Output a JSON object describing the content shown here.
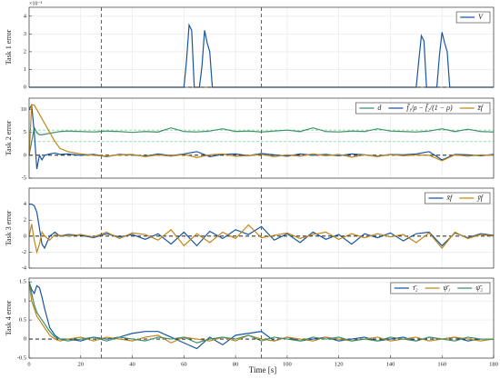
{
  "chart_data": [
    {
      "type": "line",
      "ylabel": "Task 1 error",
      "y_exponent": "×10⁻³",
      "xlim": [
        0,
        180
      ],
      "ylim": [
        0,
        4.5
      ],
      "yticks": [
        0,
        1,
        2,
        3,
        4
      ],
      "grid": true,
      "legend": "upper right",
      "vlines": [
        28,
        90
      ],
      "vline_color": "#d9342b",
      "hline": 0,
      "x": [
        0,
        60,
        61,
        62,
        63,
        64,
        66,
        67,
        68,
        69,
        70,
        71,
        72,
        150,
        151,
        152,
        153,
        154,
        158,
        159,
        160,
        161,
        162,
        163,
        180
      ],
      "series": [
        {
          "name": "V",
          "color": "#1a56a0",
          "values": [
            0,
            0,
            1.5,
            3.5,
            3.2,
            0,
            0,
            1.2,
            3.2,
            2.5,
            2.0,
            0,
            0,
            0,
            1.5,
            2.9,
            2.6,
            0,
            0,
            1.8,
            3.1,
            2.5,
            2.0,
            0,
            0
          ]
        }
      ]
    },
    {
      "type": "line",
      "ylabel": "Task 2 error",
      "xlim": [
        0,
        180
      ],
      "ylim": [
        -5,
        12.5
      ],
      "yticks": [
        -5,
        0,
        5,
        10
      ],
      "grid": true,
      "legend": "upper right",
      "vlines": [
        28,
        90
      ],
      "vline_color": "#d9342b",
      "hline": 0,
      "thresholds": [
        3,
        5.5
      ],
      "threshold_color": "#7fdc8f",
      "x": [
        0,
        1,
        2,
        3,
        4,
        5,
        6,
        8,
        10,
        12,
        15,
        20,
        25,
        30,
        35,
        40,
        45,
        50,
        55,
        60,
        65,
        70,
        75,
        80,
        85,
        90,
        95,
        100,
        105,
        110,
        115,
        120,
        125,
        130,
        135,
        140,
        145,
        150,
        155,
        160,
        165,
        170,
        175,
        180
      ],
      "series": [
        {
          "name": "d",
          "color": "#3f8f6a",
          "values": [
            0,
            3,
            6,
            5,
            4.5,
            4.5,
            4.6,
            4.8,
            5,
            5.2,
            5.3,
            5.2,
            5.1,
            5.3,
            5.2,
            5,
            5.2,
            5.1,
            6,
            5.2,
            5.1,
            5.3,
            5.8,
            5.2,
            5.3,
            5.1,
            5.3,
            5.5,
            5.2,
            6,
            5.2,
            5.1,
            5.3,
            5.2,
            5.8,
            5.3,
            5.2,
            5.1,
            5.3,
            5.8,
            5.2,
            5.7,
            5.2,
            5.1
          ]
        },
        {
          "name": "f̄₁/ρ − f̄₂/(1 − ρ)",
          "color": "#1a56a0",
          "values": [
            10,
            11,
            5,
            -3,
            0,
            -1,
            0,
            0.3,
            0.5,
            0.2,
            0.3,
            0,
            0.2,
            -0.3,
            0.2,
            0.1,
            -0.2,
            0.3,
            -0.1,
            0.3,
            0.8,
            -0.3,
            0.2,
            0.3,
            -0.1,
            0.4,
            0.1,
            -0.2,
            0.3,
            0,
            0.2,
            -0.1,
            0.3,
            0.1,
            -0.2,
            0.2,
            0.1,
            0.3,
            0.8,
            -1,
            0.2,
            0.1,
            -0.1,
            0.2
          ]
        },
        {
          "name": "z̄f",
          "color": "#c0861a",
          "values": [
            0,
            11,
            11,
            10,
            9,
            8,
            7,
            5,
            3,
            1.5,
            0.8,
            0.3,
            0,
            -0.2,
            0.1,
            0.2,
            -0.3,
            0.1,
            -0.2,
            0.2,
            -0.5,
            0.1,
            0.3,
            -0.2,
            -0.1,
            0.2,
            -0.3,
            0.1,
            -0.2,
            0.3,
            -0.1,
            0.2,
            -0.4,
            0.1,
            -0.3,
            0.2,
            -0.1,
            0.1,
            0,
            -1.2,
            0.1,
            -0.2,
            0.1,
            0
          ]
        }
      ]
    },
    {
      "type": "line",
      "ylabel": "Task 3 error",
      "xlim": [
        0,
        180
      ],
      "ylim": [
        -4,
        6
      ],
      "yticks": [
        -4,
        -2,
        0,
        2,
        4
      ],
      "grid": true,
      "legend": "upper right",
      "vlines": [
        28,
        90
      ],
      "vline_color": "#d9342b",
      "hline": 0,
      "x": [
        0,
        1,
        2,
        3,
        4,
        5,
        6,
        8,
        10,
        12,
        15,
        20,
        25,
        30,
        35,
        40,
        45,
        50,
        55,
        60,
        65,
        70,
        75,
        80,
        85,
        90,
        95,
        100,
        105,
        110,
        115,
        120,
        125,
        130,
        135,
        140,
        145,
        150,
        155,
        160,
        165,
        170,
        175,
        180
      ],
      "series": [
        {
          "name": "x̄f",
          "color": "#1a56a0",
          "values": [
            4,
            4,
            3.8,
            3,
            1,
            -1,
            -1.5,
            0,
            0.5,
            0,
            0.2,
            0.1,
            -0.2,
            0.3,
            -0.1,
            0.2,
            -0.4,
            0.3,
            -1,
            0.5,
            -1.2,
            0.6,
            -0.3,
            0.8,
            0.2,
            1.2,
            -0.5,
            0.3,
            -0.8,
            0.5,
            -0.4,
            0.2,
            -1,
            0.3,
            -0.2,
            0.4,
            -0.6,
            0.3,
            0.5,
            -1.2,
            0.4,
            -0.2,
            0.3,
            0.1
          ]
        },
        {
          "name": "ȳf",
          "color": "#c0861a",
          "values": [
            0,
            1.5,
            -0.5,
            -2,
            -1,
            0.5,
            0,
            -0.5,
            0.2,
            0.1,
            0,
            0.2,
            -0.1,
            0.5,
            -0.3,
            0.4,
            0.2,
            -0.5,
            0.8,
            -1.2,
            0.3,
            -0.8,
            0.5,
            -0.3,
            1.4,
            -0.2,
            0.1,
            0.4,
            -0.3,
            0.2,
            0.5,
            -0.4,
            0.3,
            -0.2,
            0.3,
            -0.1,
            0.2,
            -0.8,
            0.4,
            -1.5,
            0.5,
            -0.3,
            0.2,
            0
          ]
        }
      ]
    },
    {
      "type": "line",
      "ylabel": "Task 4 error",
      "xlabel": "Time [s]",
      "xlim": [
        0,
        180
      ],
      "xticks": [
        0,
        20,
        40,
        60,
        80,
        100,
        120,
        140,
        160,
        180
      ],
      "ylim": [
        -0.5,
        1.6
      ],
      "yticks": [
        -0.5,
        0,
        0.5,
        1,
        1.5
      ],
      "grid": true,
      "legend": "upper right",
      "vlines": [
        28,
        90
      ],
      "vline_color": "#d9342b",
      "hline": 0,
      "x": [
        0,
        1,
        2,
        3,
        4,
        5,
        6,
        8,
        10,
        12,
        15,
        20,
        25,
        30,
        35,
        40,
        45,
        50,
        55,
        60,
        65,
        70,
        75,
        80,
        85,
        90,
        95,
        100,
        105,
        110,
        115,
        120,
        125,
        130,
        135,
        140,
        145,
        150,
        155,
        160,
        165,
        170,
        175,
        180
      ],
      "series": [
        {
          "name": "τ̄₂",
          "color": "#1a56a0",
          "values": [
            1.5,
            1.3,
            1.2,
            1.4,
            1.35,
            1.1,
            0.8,
            0.3,
            0.1,
            0,
            0,
            -0.05,
            0.05,
            0,
            0.05,
            0.15,
            0.2,
            0.2,
            0.05,
            -0.1,
            -0.25,
            0.05,
            -0.15,
            0.1,
            0.15,
            0.2,
            -0.05,
            0.05,
            -0.05,
            0,
            0.05,
            -0.05,
            0,
            0.05,
            -0.05,
            0,
            0.05,
            -0.05,
            0.05,
            0,
            0.05,
            -0.05,
            0,
            0
          ]
        },
        {
          "name": "ψ̄₁",
          "color": "#c0861a",
          "values": [
            1.5,
            1,
            0.8,
            0.6,
            0.5,
            0.4,
            0.3,
            0.1,
            0,
            -0.05,
            0,
            0.05,
            -0.05,
            0.05,
            0,
            -0.05,
            0.05,
            0.1,
            -0.1,
            0.05,
            0,
            -0.05,
            0.05,
            -0.05,
            0.1,
            0,
            -0.05,
            0.05,
            0,
            -0.05,
            0.05,
            0,
            -0.05,
            0,
            0.05,
            -0.05,
            0,
            0.05,
            -0.05,
            0,
            0.05,
            0,
            -0.05,
            0
          ]
        },
        {
          "name": "ψ̄₂",
          "color": "#3f8f6a",
          "values": [
            1.5,
            1.2,
            0.9,
            0.7,
            0.6,
            0.5,
            0.4,
            0.2,
            0.05,
            0,
            -0.05,
            0,
            0.05,
            -0.05,
            0.05,
            0,
            -0.05,
            0.05,
            0,
            0.05,
            -0.1,
            0,
            0.05,
            0,
            0.1,
            -0.05,
            0.05,
            0,
            -0.05,
            0.05,
            0,
            0.05,
            -0.05,
            0,
            -0.05,
            0.05,
            0,
            -0.05,
            0.05,
            0,
            -0.05,
            0.05,
            0,
            0
          ]
        }
      ]
    }
  ]
}
